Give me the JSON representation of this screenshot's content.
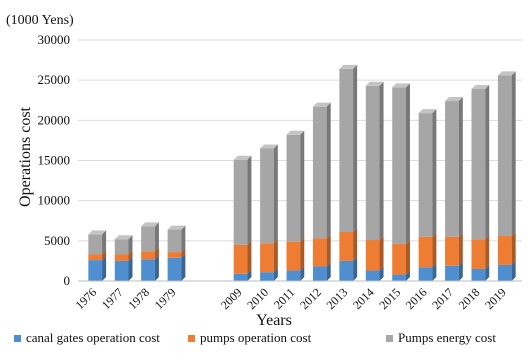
{
  "chart_data": {
    "type": "bar",
    "stacked": true,
    "style": "3d",
    "unit_label": "(1000 Yens)",
    "xlabel": "Years",
    "ylabel": "Operations cost",
    "ylim": [
      0,
      30000
    ],
    "yticks": [
      "0",
      "5000",
      "10000",
      "15000",
      "20000",
      "25000",
      "30000"
    ],
    "grid": true,
    "legend_position": "bottom",
    "categories": [
      "1976",
      "1977",
      "1978",
      "1979",
      "2009",
      "2010",
      "2011",
      "2012",
      "2013",
      "2014",
      "2015",
      "2016",
      "2017",
      "2018",
      "2019"
    ],
    "gap_after_index": 3,
    "series": [
      {
        "name": "canal gates operation cost",
        "color": "#4f8fcf",
        "values": [
          2600,
          2500,
          2700,
          2900,
          900,
          1100,
          1300,
          1800,
          2500,
          1300,
          800,
          1700,
          1900,
          1500,
          2000
        ]
      },
      {
        "name": "pumps operation cost",
        "color": "#ee7d33",
        "values": [
          700,
          800,
          1000,
          700,
          3600,
          3600,
          3600,
          3500,
          3600,
          3800,
          3800,
          3800,
          3600,
          3700,
          3600
        ]
      },
      {
        "name": "Pumps energy cost",
        "color": "#a6a6a6",
        "values": [
          2500,
          1900,
          3100,
          2800,
          10600,
          11800,
          13300,
          16400,
          20300,
          19200,
          19500,
          15400,
          16900,
          18700,
          20000
        ]
      }
    ]
  }
}
